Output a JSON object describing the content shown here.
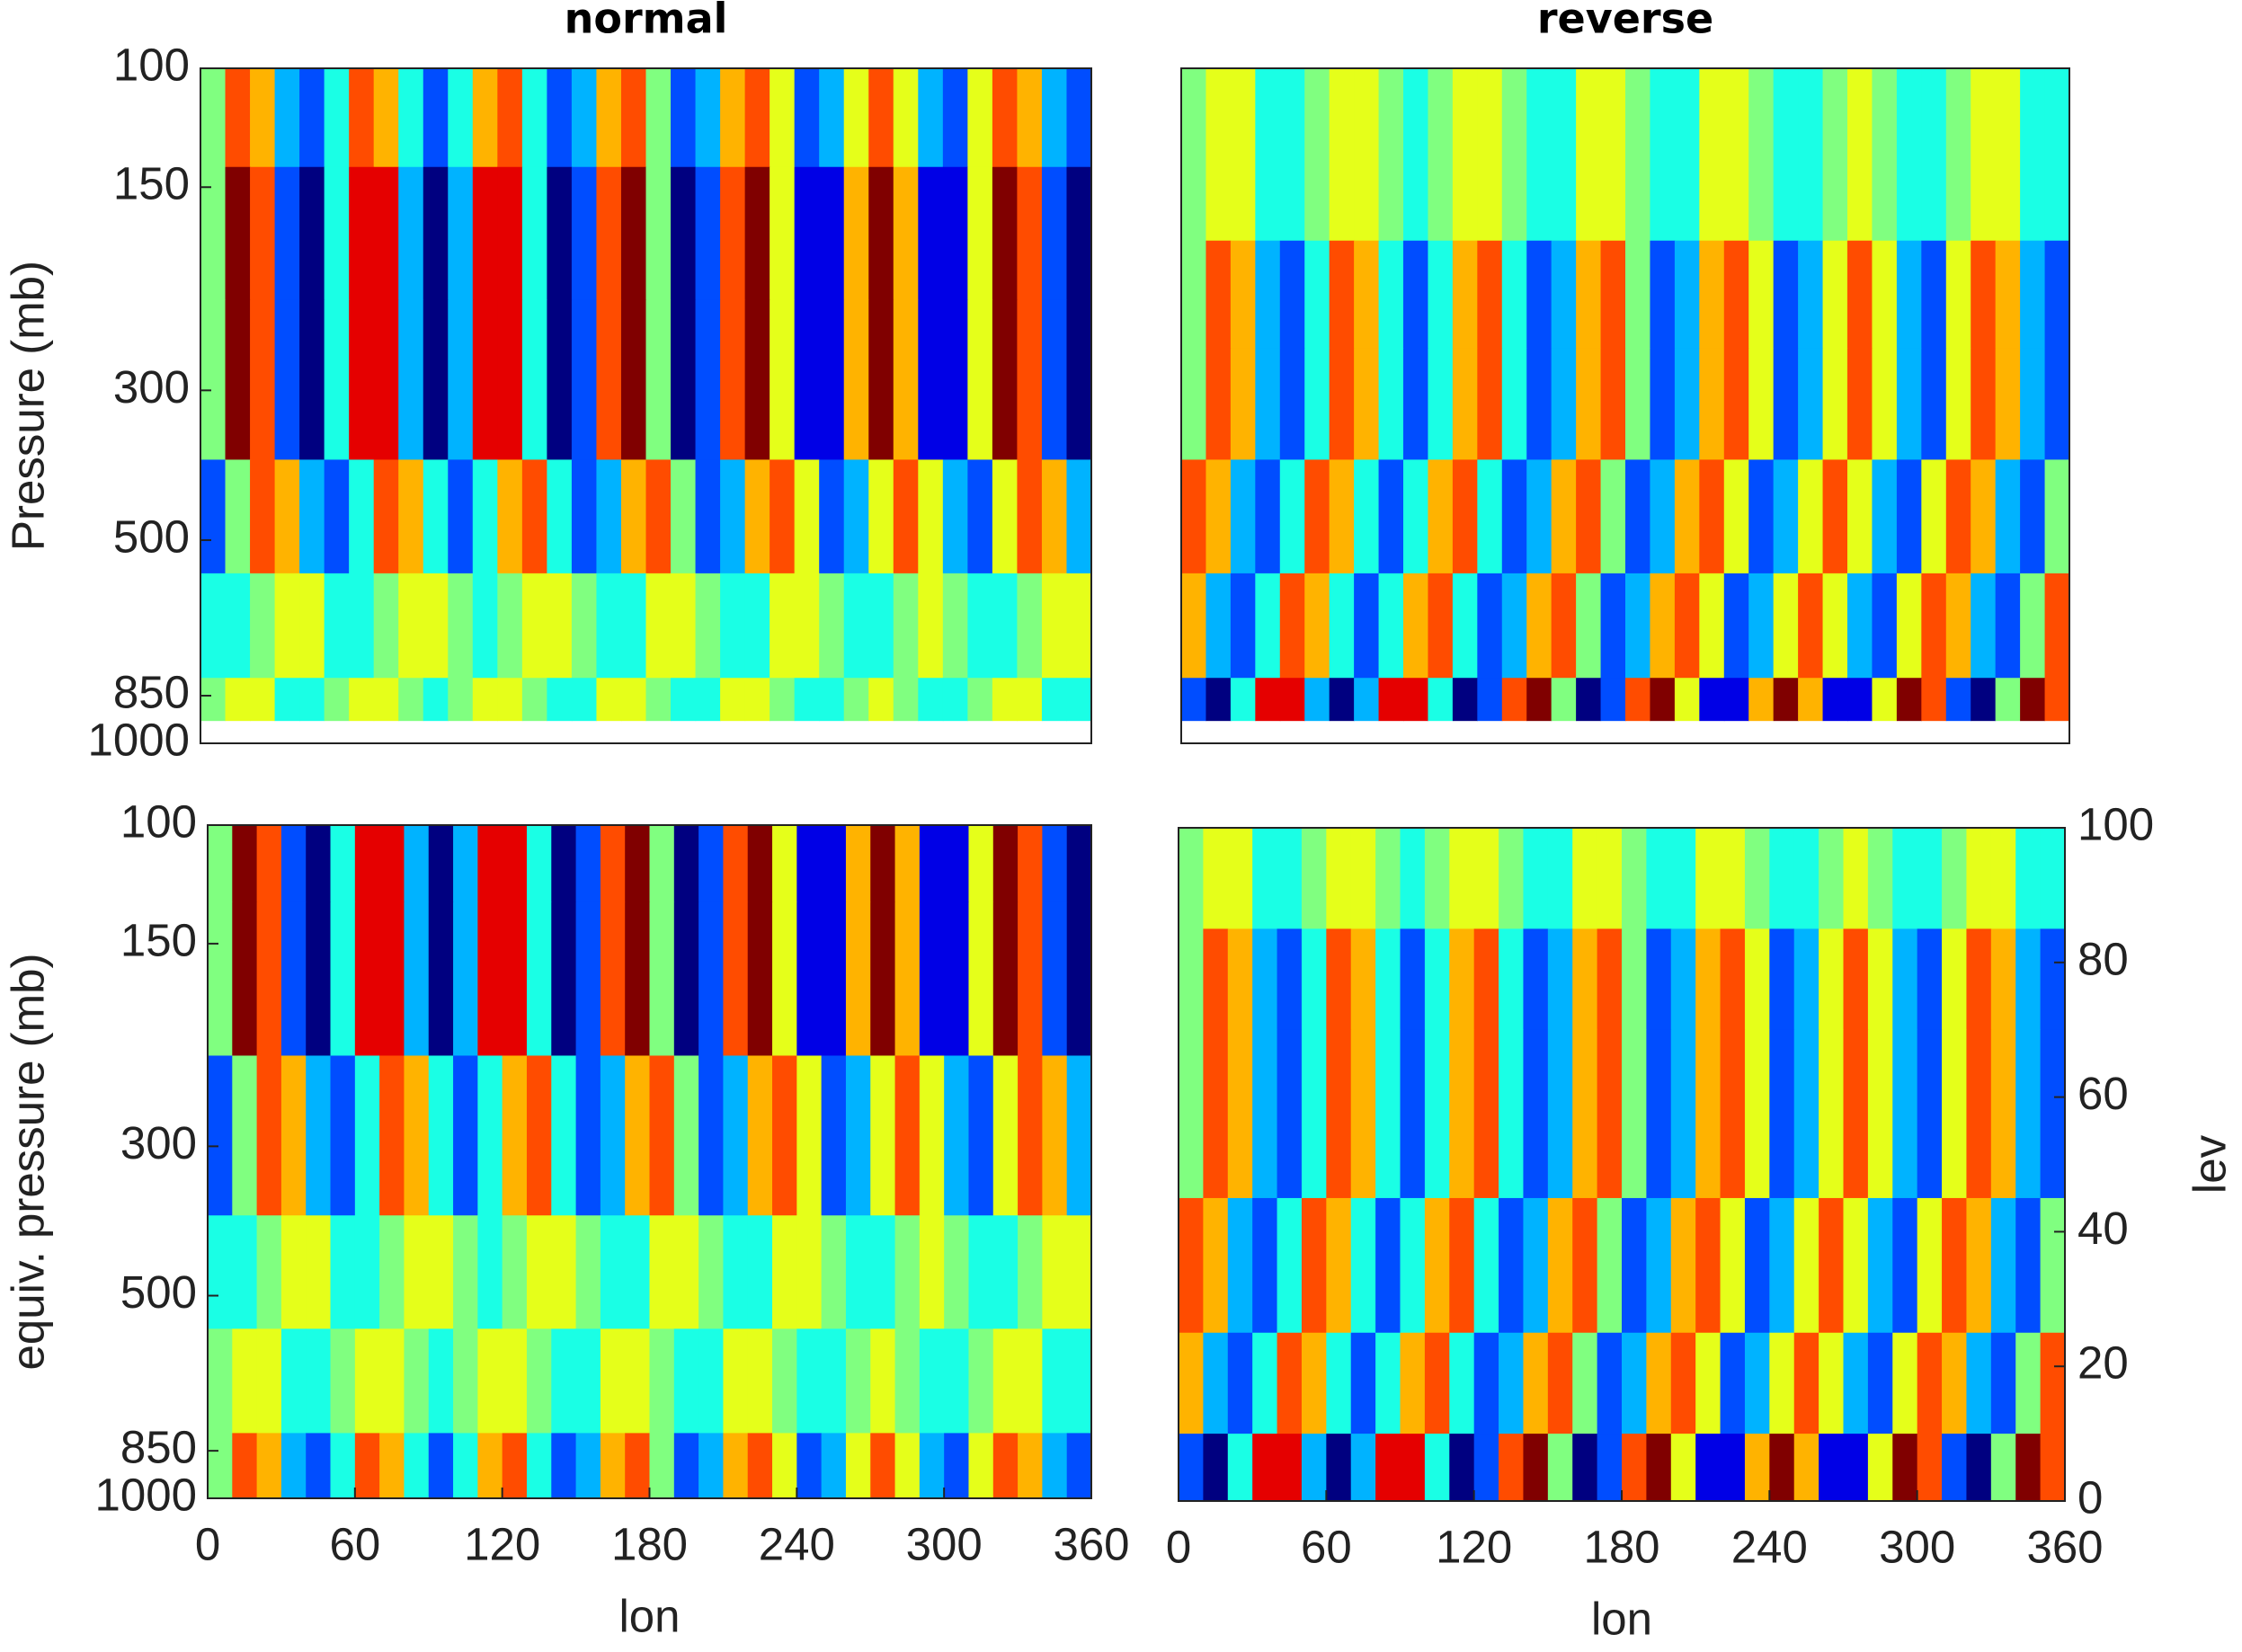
{
  "chart_data": [
    {
      "type": "contour",
      "title": "normal",
      "ylabel": "Pressure (mb)",
      "ylog": true,
      "xlim": [
        0,
        360
      ],
      "ylim": [
        1000,
        100
      ],
      "yticks": [
        100,
        150,
        300,
        500,
        850,
        1000
      ],
      "zlim": [
        -5,
        5
      ],
      "x": [
        0,
        10,
        20,
        30,
        40,
        50,
        60,
        70,
        80,
        90,
        100,
        110,
        120,
        130,
        140,
        150,
        160,
        170,
        180,
        190,
        200,
        210,
        220,
        230,
        240,
        250,
        260,
        270,
        280,
        290,
        300,
        310,
        320,
        330,
        340,
        350,
        360
      ],
      "y": [
        100,
        140,
        220,
        380,
        560,
        800,
        925
      ],
      "z": [
        [
          0,
          3,
          2,
          -2,
          -3,
          -1,
          3,
          2,
          -1,
          -3,
          -1,
          2,
          3,
          -1,
          -3,
          -2,
          2,
          3,
          0,
          -3,
          -2,
          2,
          3,
          1,
          -3,
          -2,
          1,
          3,
          1,
          -2,
          -3,
          1,
          3,
          2,
          -2,
          -3
        ],
        [
          0,
          5,
          3,
          -3,
          -5,
          -1,
          4,
          4,
          -2,
          -5,
          -2,
          4,
          4,
          -1,
          -5,
          -3,
          3,
          5,
          0,
          -5,
          -3,
          3,
          5,
          1,
          -4,
          -4,
          2,
          5,
          2,
          -4,
          -4,
          1,
          5,
          3,
          -3,
          -5
        ],
        [
          0,
          5,
          3,
          -3,
          -5,
          -1,
          4,
          4,
          -2,
          -5,
          -2,
          4,
          4,
          -1,
          -5,
          -3,
          3,
          5,
          0,
          -5,
          -3,
          3,
          5,
          1,
          -4,
          -4,
          2,
          5,
          2,
          -4,
          -4,
          1,
          5,
          3,
          -3,
          -5
        ],
        [
          -3,
          0,
          3,
          2,
          -2,
          -3,
          -1,
          3,
          2,
          -1,
          -3,
          -1,
          2,
          3,
          -1,
          -3,
          -2,
          2,
          3,
          0,
          -3,
          -2,
          2,
          3,
          1,
          -3,
          -2,
          1,
          3,
          1,
          -2,
          -3,
          1,
          3,
          2,
          -2
        ],
        [
          -1,
          -1,
          0,
          1,
          1,
          -1,
          -1,
          0,
          1,
          1,
          0,
          -1,
          0,
          1,
          1,
          0,
          -1,
          -1,
          1,
          1,
          0,
          -1,
          -1,
          1,
          1,
          0,
          -1,
          -1,
          0,
          1,
          0,
          -1,
          -1,
          0,
          1,
          1
        ],
        [
          0,
          1,
          1,
          -1,
          -1,
          0,
          1,
          1,
          0,
          -1,
          0,
          1,
          1,
          0,
          -1,
          -1,
          1,
          1,
          0,
          -1,
          -1,
          1,
          1,
          0,
          -1,
          -1,
          0,
          1,
          0,
          -1,
          -1,
          0,
          1,
          1,
          -1,
          -1
        ]
      ]
    },
    {
      "type": "contour",
      "title": "reverse",
      "ylog": true,
      "xlim": [
        0,
        360
      ],
      "ylim": [
        1000,
        100
      ],
      "zlim": [
        -5,
        5
      ],
      "x": [
        0,
        10,
        20,
        30,
        40,
        50,
        60,
        70,
        80,
        90,
        100,
        110,
        120,
        130,
        140,
        150,
        160,
        170,
        180,
        190,
        200,
        210,
        220,
        230,
        240,
        250,
        260,
        270,
        280,
        290,
        300,
        310,
        320,
        330,
        340,
        350,
        360
      ],
      "y": [
        100,
        180,
        260,
        380,
        560,
        800,
        925
      ],
      "z": [
        [
          0,
          1,
          1,
          -1,
          -1,
          0,
          1,
          1,
          0,
          -1,
          0,
          1,
          1,
          0,
          -1,
          -1,
          1,
          1,
          0,
          -1,
          -1,
          1,
          1,
          0,
          -1,
          -1,
          0,
          1,
          0,
          -1,
          -1,
          0,
          1,
          1,
          -1,
          -1
        ],
        [
          0,
          3,
          2,
          -2,
          -3,
          -1,
          3,
          2,
          -1,
          -3,
          -1,
          2,
          3,
          -1,
          -3,
          -2,
          2,
          3,
          0,
          -3,
          -2,
          2,
          3,
          1,
          -3,
          -2,
          1,
          3,
          1,
          -2,
          -3,
          1,
          3,
          2,
          -2,
          -3
        ],
        [
          0,
          3,
          2,
          -2,
          -3,
          -1,
          3,
          2,
          -1,
          -3,
          -1,
          2,
          3,
          -1,
          -3,
          -2,
          2,
          3,
          0,
          -3,
          -2,
          2,
          3,
          1,
          -3,
          -2,
          1,
          3,
          1,
          -2,
          -3,
          1,
          3,
          2,
          -2,
          -3
        ],
        [
          3,
          2,
          -2,
          -3,
          -1,
          3,
          2,
          -1,
          -3,
          -1,
          2,
          3,
          -1,
          -3,
          -2,
          2,
          3,
          0,
          -3,
          -2,
          2,
          3,
          1,
          -3,
          -2,
          1,
          3,
          1,
          -2,
          -3,
          1,
          3,
          2,
          -2,
          -3,
          0
        ],
        [
          2,
          -2,
          -3,
          -1,
          3,
          2,
          -1,
          -3,
          -1,
          2,
          3,
          -1,
          -3,
          -2,
          2,
          3,
          0,
          -3,
          -2,
          2,
          3,
          1,
          -3,
          -2,
          1,
          3,
          1,
          -2,
          -3,
          1,
          3,
          2,
          -2,
          -3,
          0,
          3
        ],
        [
          -3,
          -5,
          -1,
          4,
          4,
          -2,
          -5,
          -2,
          4,
          4,
          -1,
          -5,
          -3,
          3,
          5,
          0,
          -5,
          -3,
          3,
          5,
          1,
          -4,
          -4,
          2,
          5,
          2,
          -4,
          -4,
          1,
          5,
          3,
          -3,
          -5,
          0,
          5,
          3
        ]
      ]
    },
    {
      "type": "contour",
      "ylabel": "equiv. pressure (mb)",
      "xlabel": "lon",
      "ylog": true,
      "xlim": [
        0,
        360
      ],
      "ylim": [
        1000,
        100
      ],
      "xticks": [
        0,
        60,
        120,
        180,
        240,
        300,
        360
      ],
      "yticks": [
        100,
        150,
        300,
        500,
        850,
        1000
      ],
      "zlim": [
        -5,
        5
      ],
      "x": [
        0,
        10,
        20,
        30,
        40,
        50,
        60,
        70,
        80,
        90,
        100,
        110,
        120,
        130,
        140,
        150,
        160,
        170,
        180,
        190,
        200,
        210,
        220,
        230,
        240,
        250,
        260,
        270,
        280,
        290,
        300,
        310,
        320,
        330,
        340,
        350,
        360
      ],
      "y": [
        100,
        130,
        220,
        380,
        560,
        800,
        1000
      ],
      "z": [
        [
          0,
          5,
          3,
          -3,
          -5,
          -1,
          4,
          4,
          -2,
          -5,
          -2,
          4,
          4,
          -1,
          -5,
          -3,
          3,
          5,
          0,
          -5,
          -3,
          3,
          5,
          1,
          -4,
          -4,
          2,
          5,
          2,
          -4,
          -4,
          1,
          5,
          3,
          -3,
          -5
        ],
        [
          0,
          5,
          3,
          -3,
          -5,
          -1,
          4,
          4,
          -2,
          -5,
          -2,
          4,
          4,
          -1,
          -5,
          -3,
          3,
          5,
          0,
          -5,
          -3,
          3,
          5,
          1,
          -4,
          -4,
          2,
          5,
          2,
          -4,
          -4,
          1,
          5,
          3,
          -3,
          -5
        ],
        [
          -3,
          0,
          3,
          2,
          -2,
          -3,
          -1,
          3,
          2,
          -1,
          -3,
          -1,
          2,
          3,
          -1,
          -3,
          -2,
          2,
          3,
          0,
          -3,
          -2,
          2,
          3,
          1,
          -3,
          -2,
          1,
          3,
          1,
          -2,
          -3,
          1,
          3,
          2,
          -2
        ],
        [
          -1,
          -1,
          0,
          1,
          1,
          -1,
          -1,
          0,
          1,
          1,
          0,
          -1,
          0,
          1,
          1,
          0,
          -1,
          -1,
          1,
          1,
          0,
          -1,
          -1,
          1,
          1,
          0,
          -1,
          -1,
          0,
          1,
          0,
          -1,
          -1,
          0,
          1,
          1
        ],
        [
          0,
          1,
          1,
          -1,
          -1,
          0,
          1,
          1,
          0,
          -1,
          0,
          1,
          1,
          0,
          -1,
          -1,
          1,
          1,
          0,
          -1,
          -1,
          1,
          1,
          0,
          -1,
          -1,
          0,
          1,
          0,
          -1,
          -1,
          0,
          1,
          1,
          -1,
          -1
        ],
        [
          0,
          3,
          2,
          -2,
          -3,
          -1,
          3,
          2,
          -1,
          -3,
          -1,
          2,
          3,
          -1,
          -3,
          -2,
          2,
          3,
          0,
          -3,
          -2,
          2,
          3,
          1,
          -3,
          -2,
          1,
          3,
          1,
          -2,
          -3,
          1,
          3,
          2,
          -2,
          -3
        ]
      ]
    },
    {
      "type": "contour",
      "ylabel": "lev",
      "xlabel": "lon",
      "yaxis": "right",
      "xlim": [
        0,
        360
      ],
      "ylim": [
        0,
        100
      ],
      "xticks": [
        0,
        60,
        120,
        180,
        240,
        300,
        360
      ],
      "yticks": [
        0,
        20,
        40,
        60,
        80,
        100
      ],
      "zlim": [
        -5,
        5
      ],
      "x": [
        0,
        10,
        20,
        30,
        40,
        50,
        60,
        70,
        80,
        90,
        100,
        110,
        120,
        130,
        140,
        150,
        160,
        170,
        180,
        190,
        200,
        210,
        220,
        230,
        240,
        250,
        260,
        270,
        280,
        290,
        300,
        310,
        320,
        330,
        340,
        350,
        360
      ],
      "y": [
        100,
        85,
        70,
        45,
        25,
        10,
        0
      ],
      "z": [
        [
          0,
          1,
          1,
          -1,
          -1,
          0,
          1,
          1,
          0,
          -1,
          0,
          1,
          1,
          0,
          -1,
          -1,
          1,
          1,
          0,
          -1,
          -1,
          1,
          1,
          0,
          -1,
          -1,
          0,
          1,
          0,
          -1,
          -1,
          0,
          1,
          1,
          -1,
          -1
        ],
        [
          0,
          3,
          2,
          -2,
          -3,
          -1,
          3,
          2,
          -1,
          -3,
          -1,
          2,
          3,
          -1,
          -3,
          -2,
          2,
          3,
          0,
          -3,
          -2,
          2,
          3,
          1,
          -3,
          -2,
          1,
          3,
          1,
          -2,
          -3,
          1,
          3,
          2,
          -2,
          -3
        ],
        [
          0,
          3,
          2,
          -2,
          -3,
          -1,
          3,
          2,
          -1,
          -3,
          -1,
          2,
          3,
          -1,
          -3,
          -2,
          2,
          3,
          0,
          -3,
          -2,
          2,
          3,
          1,
          -3,
          -2,
          1,
          3,
          1,
          -2,
          -3,
          1,
          3,
          2,
          -2,
          -3
        ],
        [
          3,
          2,
          -2,
          -3,
          -1,
          3,
          2,
          -1,
          -3,
          -1,
          2,
          3,
          -1,
          -3,
          -2,
          2,
          3,
          0,
          -3,
          -2,
          2,
          3,
          1,
          -3,
          -2,
          1,
          3,
          1,
          -2,
          -3,
          1,
          3,
          2,
          -2,
          -3,
          0
        ],
        [
          2,
          -2,
          -3,
          -1,
          3,
          2,
          -1,
          -3,
          -1,
          2,
          3,
          -1,
          -3,
          -2,
          2,
          3,
          0,
          -3,
          -2,
          2,
          3,
          1,
          -3,
          -2,
          1,
          3,
          1,
          -2,
          -3,
          1,
          3,
          2,
          -2,
          -3,
          0,
          3
        ],
        [
          -3,
          -5,
          -1,
          4,
          4,
          -2,
          -5,
          -2,
          4,
          4,
          -1,
          -5,
          -3,
          3,
          5,
          0,
          -5,
          -3,
          3,
          5,
          1,
          -4,
          -4,
          2,
          5,
          2,
          -4,
          -4,
          1,
          5,
          3,
          -3,
          -5,
          0,
          5,
          3
        ]
      ]
    }
  ]
}
